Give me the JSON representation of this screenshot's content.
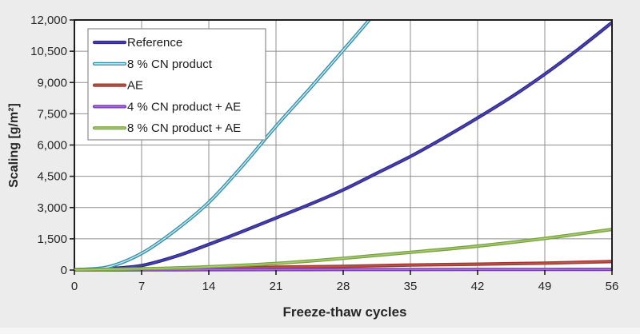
{
  "figure": {
    "background": "#ececec",
    "bottom_strip": "#f6f6f6",
    "plot_bg": "#ffffff",
    "grid_color": "#8f8f8f",
    "border_color": "#1e1e1e",
    "tick_color": "#1e1e1e",
    "text_color": "#262626",
    "legend_bg": "#ffffff",
    "legend_border": "#8c8c8c"
  },
  "chart_data": {
    "type": "line",
    "title": "",
    "xlabel": "Freeze-thaw cycles",
    "ylabel": "Scaling [g/m²]",
    "xlim": [
      0,
      56
    ],
    "ylim": [
      0,
      12000
    ],
    "grid": true,
    "legend_position": "top-left",
    "x_ticks": [
      0,
      7,
      14,
      21,
      28,
      35,
      42,
      49,
      56
    ],
    "x_tick_labels": [
      "0",
      "7",
      "14",
      "21",
      "28",
      "35",
      "42",
      "49",
      "56"
    ],
    "y_ticks": [
      0,
      1500,
      3000,
      4500,
      6000,
      7500,
      9000,
      10500,
      12000
    ],
    "y_tick_labels": [
      "0",
      "1,500",
      "3,000",
      "4,500",
      "6,000",
      "7,500",
      "9,000",
      "10,500",
      "12,000"
    ],
    "series": [
      {
        "name": "Reference",
        "color": "#2f2a8e",
        "core_color": "#4c43b0",
        "x": [
          0,
          3.5,
          7,
          10.5,
          14,
          17.5,
          21,
          24.5,
          28,
          31.5,
          35,
          38.5,
          42,
          45.5,
          49,
          52.5,
          56
        ],
        "y": [
          20,
          70,
          220,
          650,
          1230,
          1850,
          2500,
          3150,
          3850,
          4650,
          5450,
          6350,
          7300,
          8300,
          9400,
          10600,
          11880
        ]
      },
      {
        "name": "8 % CN product",
        "color": "#318ea6",
        "core_color": "#bfe3ec",
        "x": [
          0,
          3.5,
          7,
          10.5,
          14,
          17.5,
          21,
          24.5,
          28,
          30.9
        ],
        "y": [
          20,
          150,
          800,
          1900,
          3250,
          5000,
          6900,
          8700,
          10550,
          12100
        ]
      },
      {
        "name": "AE",
        "color": "#a03830",
        "core_color": "#b8564b",
        "x": [
          0,
          7,
          14,
          21,
          28,
          35,
          42,
          49,
          56
        ],
        "y": [
          8,
          40,
          75,
          140,
          180,
          240,
          285,
          335,
          410
        ]
      },
      {
        "name": "4 % CN product + AE",
        "color": "#7d3ab5",
        "core_color": "#a76fd6",
        "x": [
          0,
          7,
          14,
          21,
          28,
          35,
          42,
          49,
          56
        ],
        "y": [
          5,
          12,
          18,
          22,
          25,
          28,
          30,
          32,
          35
        ]
      },
      {
        "name": "8 % CN product + AE",
        "color": "#78a441",
        "core_color": "#aac873",
        "x": [
          0,
          7,
          14,
          21,
          28,
          35,
          42,
          49,
          56
        ],
        "y": [
          10,
          60,
          160,
          320,
          565,
          850,
          1150,
          1520,
          1950
        ]
      }
    ]
  }
}
